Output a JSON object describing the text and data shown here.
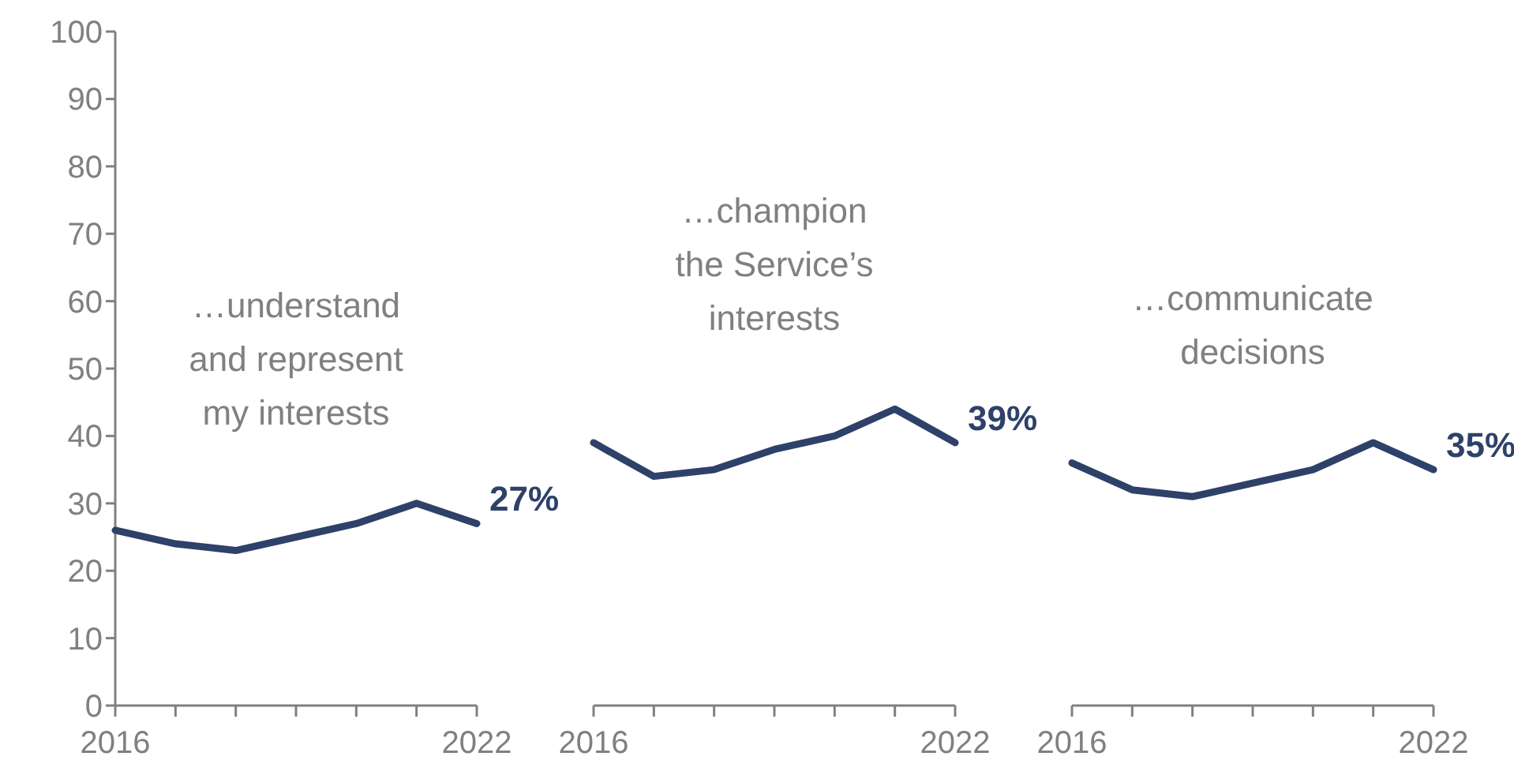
{
  "chart_data": [
    {
      "type": "line",
      "title": "…understand\nand represent\nmy interests",
      "x": [
        2016,
        2017,
        2018,
        2019,
        2020,
        2021,
        2022
      ],
      "series": [
        {
          "color": "#2e4169",
          "values": [
            26,
            24,
            23,
            25,
            27,
            30,
            27
          ],
          "value_labels": [
            null,
            null,
            null,
            null,
            null,
            null,
            "27%"
          ]
        }
      ],
      "xlim": [
        2016,
        2022
      ],
      "xticks": [
        {
          "value": 2016,
          "label": "2016"
        },
        {
          "value": 2017,
          "label": null
        },
        {
          "value": 2018,
          "label": null
        },
        {
          "value": 2019,
          "label": null
        },
        {
          "value": 2020,
          "label": null
        },
        {
          "value": 2021,
          "label": null
        },
        {
          "value": 2022,
          "label": "2022"
        }
      ],
      "ylim": [
        0,
        100
      ],
      "yticks": [
        0,
        10,
        20,
        30,
        40,
        50,
        60,
        70,
        80,
        90,
        100
      ],
      "grid": false,
      "marker": "none"
    },
    {
      "type": "line",
      "title": "…champion\nthe Service’s\ninterests",
      "x": [
        2016,
        2017,
        2018,
        2019,
        2020,
        2021,
        2022
      ],
      "series": [
        {
          "color": "#2e4169",
          "values": [
            39,
            34,
            35,
            38,
            40,
            44,
            39
          ],
          "value_labels": [
            null,
            null,
            null,
            null,
            null,
            null,
            "39%"
          ]
        }
      ],
      "xlim": [
        2016,
        2022
      ],
      "xticks": [
        {
          "value": 2016,
          "label": "2016"
        },
        {
          "value": 2017,
          "label": null
        },
        {
          "value": 2018,
          "label": null
        },
        {
          "value": 2019,
          "label": null
        },
        {
          "value": 2020,
          "label": null
        },
        {
          "value": 2021,
          "label": null
        },
        {
          "value": 2022,
          "label": "2022"
        }
      ],
      "ylim": [
        0,
        100
      ],
      "tick_labels": "x",
      "grid": false,
      "marker": "none"
    },
    {
      "type": "line",
      "title": "…communicate\ndecisions",
      "x": [
        2016,
        2017,
        2018,
        2019,
        2020,
        2021,
        2022
      ],
      "series": [
        {
          "color": "#2e4169",
          "values": [
            36,
            32,
            31,
            33,
            35,
            39,
            35
          ],
          "value_labels": [
            null,
            null,
            null,
            null,
            null,
            null,
            "35%"
          ]
        }
      ],
      "xlim": [
        2016,
        2022
      ],
      "xticks": [
        {
          "value": 2016,
          "label": "2016"
        },
        {
          "value": 2017,
          "label": null
        },
        {
          "value": 2018,
          "label": null
        },
        {
          "value": 2019,
          "label": null
        },
        {
          "value": 2020,
          "label": null
        },
        {
          "value": 2021,
          "label": null
        },
        {
          "value": 2022,
          "label": "2022"
        }
      ],
      "ylim": [
        0,
        100
      ],
      "tick_labels": "x",
      "grid": false,
      "marker": "none"
    }
  ]
}
